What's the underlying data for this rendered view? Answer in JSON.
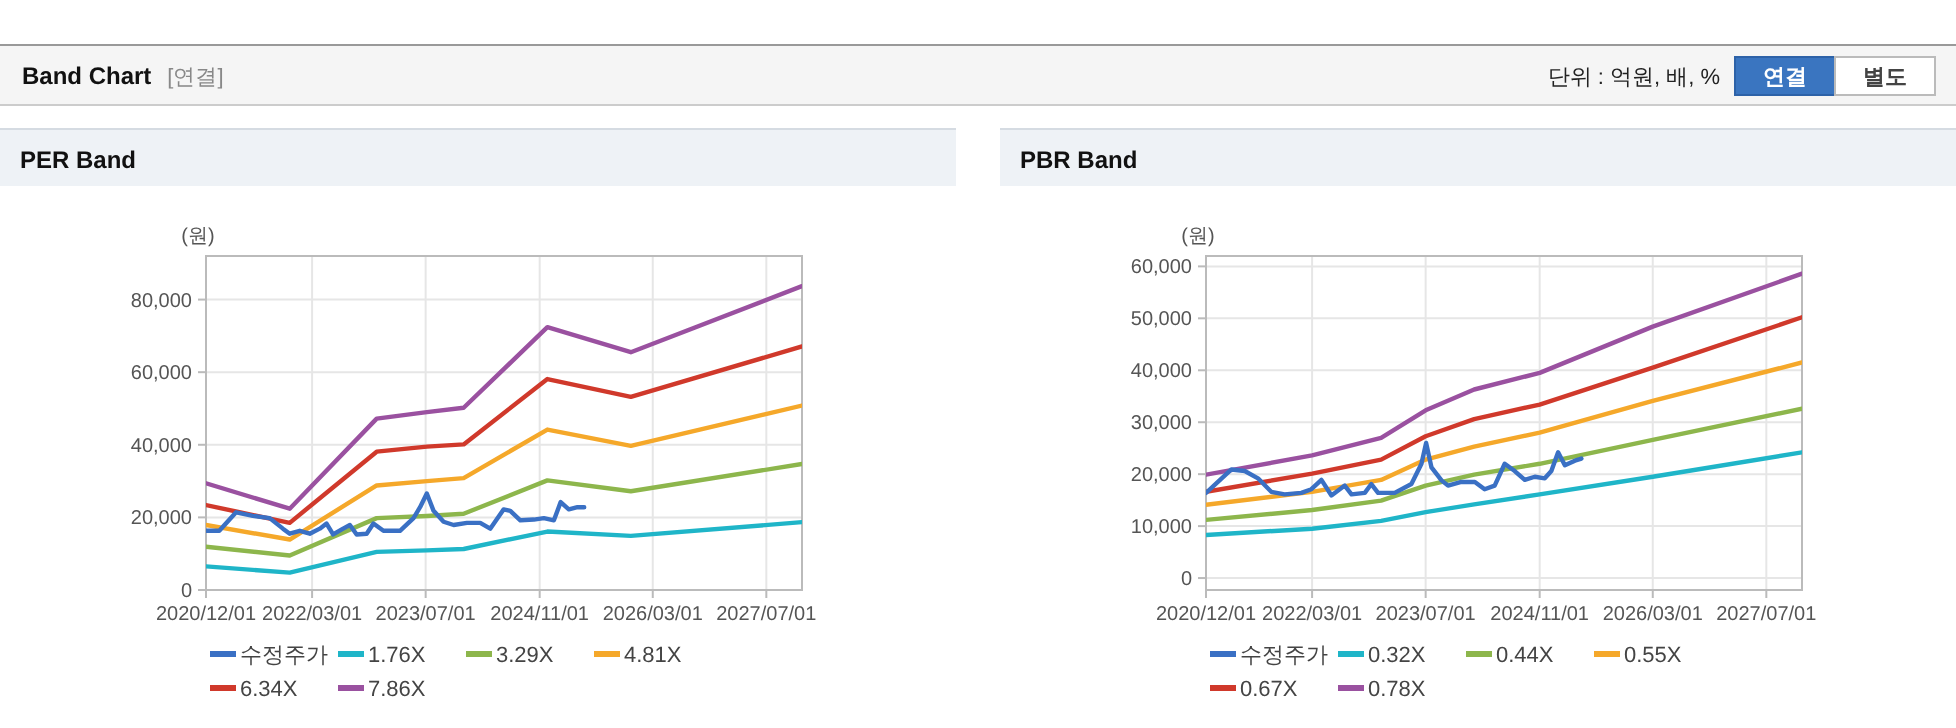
{
  "chart_data": [
    {
      "type": "other",
      "title": "Band Chart",
      "annotations": [
        "[연결]",
        "단위 : 억원, 배, %",
        "연결",
        "별도"
      ]
    },
    {
      "type": "line",
      "title": "PER Band",
      "ylabel": "(원)",
      "legend": "bottom",
      "grid": true,
      "x": [
        "2020-12-01",
        "2021-11-25",
        "2022-12-03",
        "2023-07-06",
        "2023-12-11",
        "2024-12-04",
        "2025-11-27",
        "2027-12-01"
      ],
      "xlim": [
        "2020-12-01",
        "2027-12-01"
      ],
      "xticks": [
        {
          "value": "2020-12-01",
          "label": "2020/12/01"
        },
        {
          "value": "2022-03-01",
          "label": "2022/03/01"
        },
        {
          "value": "2023-07-01",
          "label": "2023/07/01"
        },
        {
          "value": "2024-11-01",
          "label": "2024/11/01"
        },
        {
          "value": "2026-03-01",
          "label": "2026/03/01"
        },
        {
          "value": "2027-07-01",
          "label": "2027/07/01"
        }
      ],
      "ylim": [
        0,
        92000
      ],
      "yticks": [
        0,
        {
          "value": 20000,
          "label": "20,000"
        },
        {
          "value": 40000,
          "label": "40,000"
        },
        {
          "value": 60000,
          "label": "60,000"
        },
        {
          "value": 80000,
          "label": "80,000"
        }
      ],
      "series": [
        {
          "name": "수정주가",
          "color": "#3a70c4",
          "x": [
            "2020-12-01",
            "2021-01-27",
            "2021-04-09",
            "2021-06-20",
            "2021-08-31",
            "2021-10-27",
            "2021-11-25",
            "2022-01-07",
            "2022-02-19",
            "2022-04-03",
            "2022-05-02",
            "2022-05-30",
            "2022-07-12",
            "2022-08-10",
            "2022-09-08",
            "2022-10-21",
            "2022-11-19",
            "2023-01-01",
            "2023-03-13",
            "2023-05-10",
            "2023-06-07",
            "2023-07-06",
            "2023-08-04",
            "2023-09-16",
            "2023-10-29",
            "2023-12-25",
            "2024-02-20",
            "2024-04-03",
            "2024-05-30",
            "2024-06-28",
            "2024-08-10",
            "2024-10-07",
            "2024-11-19",
            "2025-01-01",
            "2025-01-30",
            "2025-03-06",
            "2025-04-12",
            "2025-05-11"
          ],
          "values": [
            16300,
            16300,
            21400,
            20400,
            19800,
            16900,
            15500,
            16300,
            15500,
            16900,
            18300,
            15300,
            16900,
            17900,
            15300,
            15500,
            18300,
            16300,
            16300,
            19800,
            22800,
            26600,
            21800,
            18800,
            17900,
            18500,
            18500,
            16900,
            22200,
            21800,
            19200,
            19400,
            19800,
            19200,
            24200,
            22200,
            22800,
            22800
          ]
        },
        {
          "name": "1.76X",
          "color": "#1fb5c8",
          "values": [
            6500,
            4800,
            10500,
            10900,
            11300,
            16100,
            14900,
            18700
          ]
        },
        {
          "name": "3.29X",
          "color": "#8db64c",
          "values": [
            11900,
            9500,
            19800,
            20400,
            21000,
            30200,
            27200,
            34700
          ]
        },
        {
          "name": "4.81X",
          "color": "#f5a82a",
          "values": [
            17900,
            13900,
            28800,
            30000,
            30800,
            44200,
            39700,
            50800
          ]
        },
        {
          "name": "6.34X",
          "color": "#d0392b",
          "values": [
            23400,
            18500,
            38100,
            39500,
            40100,
            58100,
            53200,
            67100
          ]
        },
        {
          "name": "7.86X",
          "color": "#9a51a0",
          "values": [
            29400,
            22400,
            47200,
            49000,
            50200,
            72400,
            65500,
            83700
          ]
        }
      ]
    },
    {
      "type": "line",
      "title": "PBR Band",
      "ylabel": "(원)",
      "legend": "bottom",
      "grid": true,
      "x": [
        "2020-12-01",
        "2022-03-01",
        "2022-12-22",
        "2023-07-01",
        "2024-01-25",
        "2024-11-01",
        "2026-03-01",
        "2027-12-01"
      ],
      "xlim": [
        "2020-12-01",
        "2027-12-01"
      ],
      "xticks": [
        {
          "value": "2020-12-01",
          "label": "2020/12/01"
        },
        {
          "value": "2022-03-01",
          "label": "2022/03/01"
        },
        {
          "value": "2023-07-01",
          "label": "2023/07/01"
        },
        {
          "value": "2024-11-01",
          "label": "2024/11/01"
        },
        {
          "value": "2026-03-01",
          "label": "2026/03/01"
        },
        {
          "value": "2027-07-01",
          "label": "2027/07/01"
        }
      ],
      "ylim": [
        -2300,
        62000
      ],
      "yticks": [
        0,
        {
          "value": 10000,
          "label": "10,000"
        },
        {
          "value": 20000,
          "label": "20,000"
        },
        {
          "value": 30000,
          "label": "30,000"
        },
        {
          "value": 40000,
          "label": "40,000"
        },
        {
          "value": 50000,
          "label": "50,000"
        },
        {
          "value": 60000,
          "label": "60,000"
        }
      ],
      "series": [
        {
          "name": "수정주가",
          "color": "#3a70c4",
          "x": [
            "2020-12-01",
            "2021-01-21",
            "2021-03-20",
            "2021-05-16",
            "2021-07-12",
            "2021-09-07",
            "2021-11-03",
            "2022-01-14",
            "2022-02-26",
            "2022-04-10",
            "2022-05-23",
            "2022-07-19",
            "2022-08-17",
            "2022-10-13",
            "2022-11-10",
            "2022-12-09",
            "2023-02-18",
            "2023-05-01",
            "2023-06-13",
            "2023-07-03",
            "2023-07-26",
            "2023-09-07",
            "2023-10-05",
            "2023-12-01",
            "2024-01-28",
            "2024-03-10",
            "2024-04-22",
            "2024-06-04",
            "2024-07-17",
            "2024-08-29",
            "2024-10-11",
            "2024-11-23",
            "2024-12-21",
            "2025-01-19",
            "2025-02-17",
            "2025-04-01",
            "2025-04-29"
          ],
          "values": [
            16400,
            18500,
            20900,
            20600,
            19200,
            16600,
            16100,
            16400,
            17100,
            18900,
            15900,
            17800,
            16100,
            16400,
            18100,
            16400,
            16400,
            18100,
            22000,
            26000,
            21300,
            18800,
            17800,
            18500,
            18500,
            17100,
            17800,
            22000,
            20600,
            18900,
            19500,
            19200,
            20600,
            24200,
            21700,
            22600,
            23000
          ]
        },
        {
          "name": "0.32X",
          "color": "#1fb5c8",
          "values": [
            8300,
            9500,
            11000,
            12700,
            14200,
            16100,
            19500,
            24200
          ]
        },
        {
          "name": "0.44X",
          "color": "#8db64c",
          "values": [
            11200,
            13100,
            14900,
            17800,
            19900,
            22000,
            26600,
            32600
          ]
        },
        {
          "name": "0.55X",
          "color": "#f5a82a",
          "values": [
            14100,
            16600,
            18900,
            22800,
            25300,
            28000,
            34100,
            41500
          ]
        },
        {
          "name": "0.67X",
          "color": "#d0392b",
          "values": [
            16600,
            20100,
            22800,
            27300,
            30600,
            33400,
            40500,
            50200
          ]
        },
        {
          "name": "0.78X",
          "color": "#9a51a0",
          "values": [
            19900,
            23600,
            27000,
            32300,
            36300,
            39500,
            48400,
            58600
          ]
        }
      ]
    }
  ]
}
